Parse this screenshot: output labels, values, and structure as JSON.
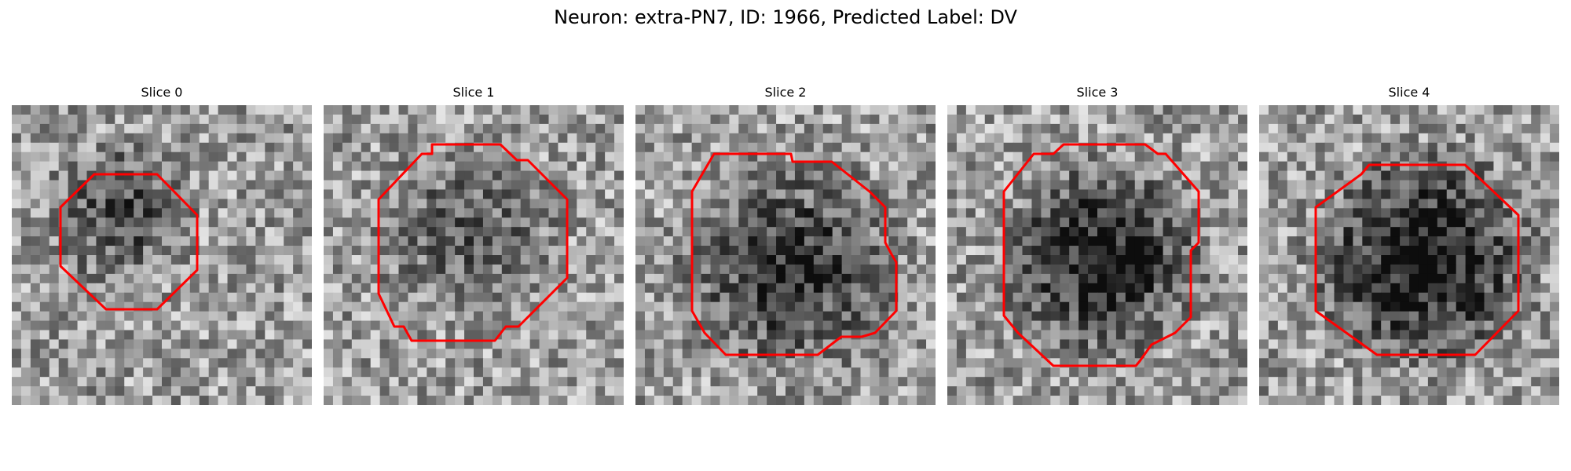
{
  "figure": {
    "title": "Neuron: extra-PN7, ID: 1966, Predicted Label: DV"
  },
  "panels": [
    {
      "title": "Slice 0"
    },
    {
      "title": "Slice 1"
    },
    {
      "title": "Slice 2"
    },
    {
      "title": "Slice 3"
    },
    {
      "title": "Slice 4"
    }
  ],
  "colors": {
    "contour": "#ff0000",
    "background": "#ffffff"
  }
}
